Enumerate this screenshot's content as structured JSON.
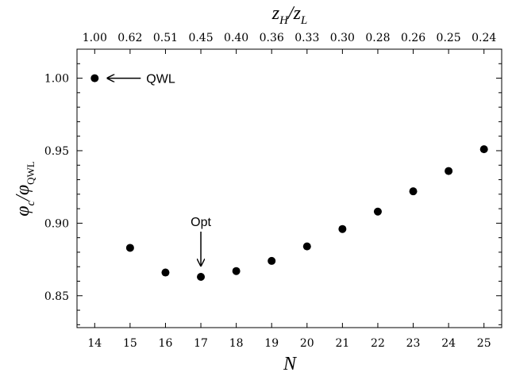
{
  "chart_data": {
    "type": "scatter",
    "title": "",
    "xlabel": "N",
    "ylabel": "φc/φQWL",
    "top_xlabel": "zH/zL",
    "x_ticks": [
      "14",
      "15",
      "16",
      "17",
      "18",
      "19",
      "20",
      "21",
      "22",
      "23",
      "24",
      "25"
    ],
    "top_ticks": [
      "1.00",
      "0.62",
      "0.51",
      "0.45",
      "0.40",
      "0.36",
      "0.33",
      "0.30",
      "0.28",
      "0.26",
      "0.25",
      "0.24"
    ],
    "y_ticks": [
      "0.85",
      "0.90",
      "0.95",
      "1.00"
    ],
    "xlim": [
      13.5,
      25.5
    ],
    "ylim": [
      0.828,
      1.02
    ],
    "grid": false,
    "series": [
      {
        "x": [
          14,
          15,
          16,
          17,
          18,
          19,
          20,
          21,
          22,
          23,
          24,
          25
        ],
        "y": [
          1.0,
          0.883,
          0.866,
          0.863,
          0.867,
          0.874,
          0.884,
          0.896,
          0.908,
          0.922,
          0.936,
          0.951
        ]
      }
    ],
    "annotations": [
      {
        "text": "QWL",
        "x": 14,
        "y": 1.0,
        "arrow": "left"
      },
      {
        "text": "Opt",
        "x": 17,
        "y": 0.863,
        "arrow": "down"
      }
    ]
  }
}
